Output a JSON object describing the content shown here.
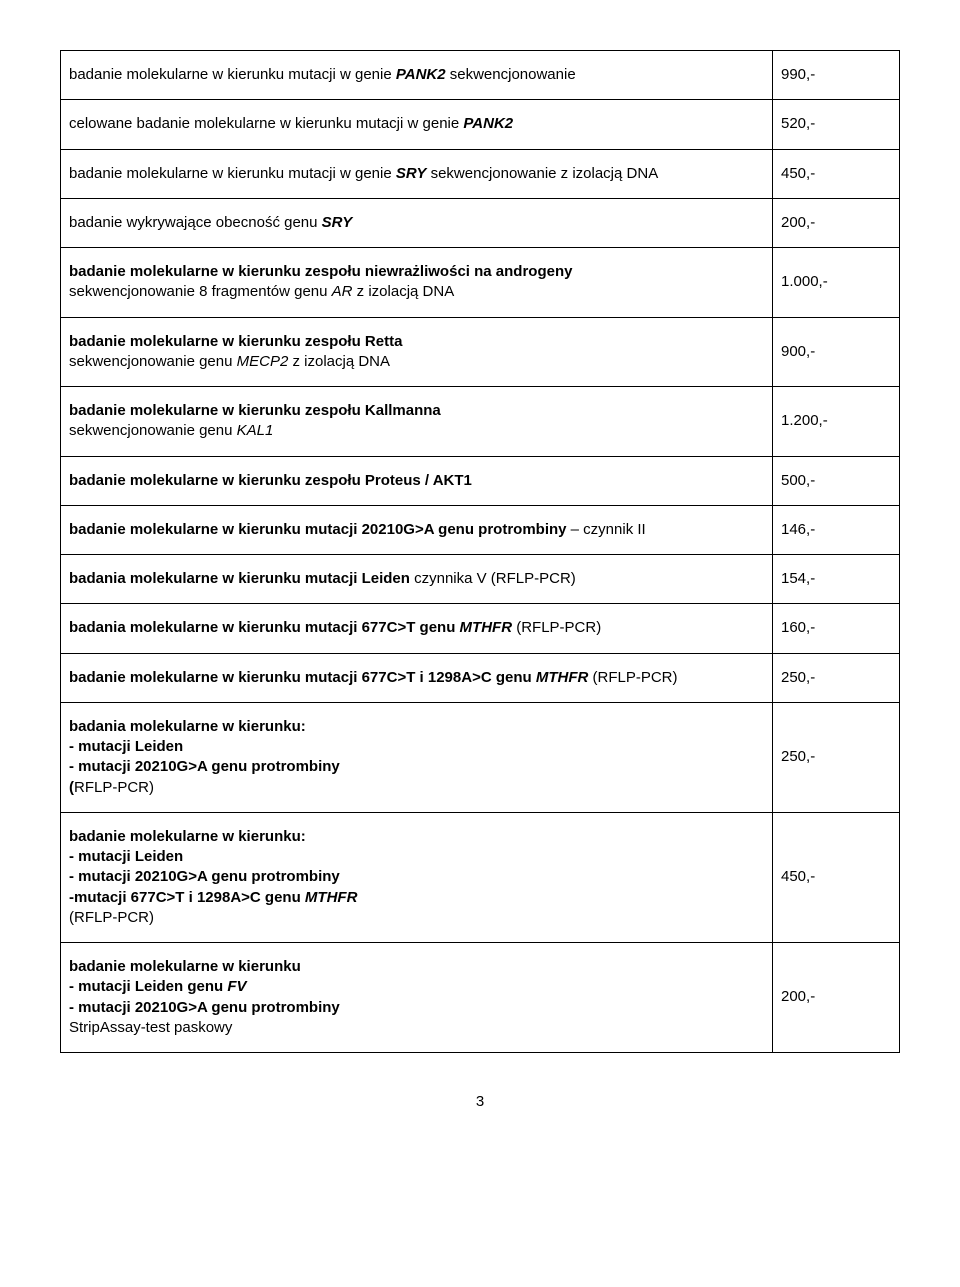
{
  "page_number": "3",
  "rows": [
    {
      "html": "badanie molekularne w kierunku mutacji w genie <span class='b i'>PANK2</span> sekwencjonowanie",
      "price": "990,-"
    },
    {
      "html": "celowane badanie molekularne w kierunku mutacji w genie <span class='b i'>PANK2</span>",
      "price": "520,-"
    },
    {
      "html": "badanie molekularne w kierunku mutacji w genie <span class='b i'>SRY</span> sekwencjonowanie z izolacją DNA",
      "price": "450,-"
    },
    {
      "html": "badanie wykrywające obecność genu <span class='b i'>SRY</span>",
      "price": "200,-"
    },
    {
      "html": "<span class='b'>badanie molekularne w kierunku zespołu niewrażliwości na androgeny</span><br>sekwencjonowanie 8 fragmentów genu <span class='i'>AR</span> z izolacją DNA",
      "price": "1.000,-"
    },
    {
      "html": "<span class='b'>badanie molekularne w kierunku zespołu Retta</span><br>sekwencjonowanie genu <span class='i'>MECP2</span> z izolacją DNA",
      "price": "900,-"
    },
    {
      "html": "<span class='b'>badanie molekularne w kierunku zespołu Kallmanna</span><br>sekwencjonowanie genu <span class='i'>KAL1</span>",
      "price": "1.200,-"
    },
    {
      "html": "<span class='b'>badanie molekularne w kierunku zespołu Proteus / AKT1</span>",
      "price": "500,-"
    },
    {
      "html": "<span class='b'>badanie molekularne w kierunku mutacji 20210G&gt;A genu protrombiny</span> – czynnik II",
      "price": "146,-"
    },
    {
      "html": "<span class='b'>badania molekularne w kierunku mutacji Leiden</span> czynnika V (RFLP-PCR)",
      "price": "154,-"
    },
    {
      "html": "<span class='b'>badania molekularne w kierunku mutacji 677C&gt;T genu <span class='i'>MTHFR</span></span> (RFLP-PCR)",
      "price": "160,-"
    },
    {
      "html": "<span class='b'>badanie molekularne w kierunku mutacji 677C&gt;T i 1298A&gt;C genu <span class='i'>MTHFR</span></span> (RFLP-PCR)",
      "price": "250,-"
    },
    {
      "html": "<span class='b'>badania molekularne w kierunku:<br>- mutacji Leiden<br>- mutacji 20210G&gt;A genu protrombiny<br>(</span>RFLP-PCR)",
      "price": "250,-"
    },
    {
      "html": "<span class='b'>badanie molekularne w kierunku:<br>- mutacji Leiden<br>- mutacji 20210G&gt;A genu protrombiny<br>-mutacji 677C&gt;T i 1298A&gt;C genu <span class='i'>MTHFR</span></span><br>(RFLP-PCR)",
      "price": "450,-"
    },
    {
      "html": "<span class='b'>badanie molekularne w kierunku<br>- mutacji Leiden genu <span class='i'>FV</span><br>- mutacji 20210G&gt;A genu protrombiny</span><br>StripAssay-test paskowy",
      "price": "200,-"
    }
  ]
}
